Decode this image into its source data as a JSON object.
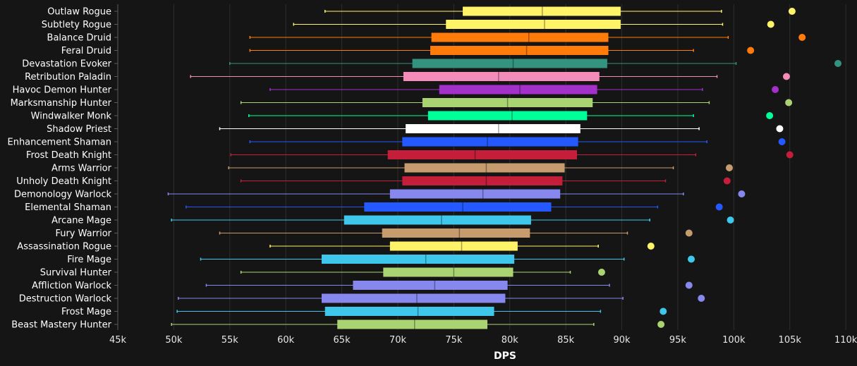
{
  "chart_data": {
    "type": "box",
    "xlabel": "DPS",
    "xlim": [
      45000,
      111000
    ],
    "x_ticks": [
      45000,
      50000,
      55000,
      60000,
      65000,
      70000,
      75000,
      80000,
      85000,
      90000,
      95000,
      100000,
      105000,
      110000
    ],
    "x_tick_labels": [
      "45k",
      "50k",
      "55k",
      "60k",
      "65k",
      "70k",
      "75k",
      "80k",
      "85k",
      "90k",
      "95k",
      "100k",
      "105k",
      "110k"
    ],
    "grid": true,
    "series": [
      {
        "name": "Outlaw Rogue",
        "color": "#FFF468",
        "min": 63500,
        "q1": 75800,
        "median": 82900,
        "q3": 89900,
        "max": 98900,
        "outlier": 105200
      },
      {
        "name": "Subtlety Rogue",
        "color": "#FFF468",
        "min": 60700,
        "q1": 74300,
        "median": 83100,
        "q3": 89900,
        "max": 99000,
        "outlier": 103300
      },
      {
        "name": "Balance Druid",
        "color": "#FF7C0A",
        "min": 56800,
        "q1": 73000,
        "median": 81700,
        "q3": 88800,
        "max": 99500,
        "outlier": 106100
      },
      {
        "name": "Feral Druid",
        "color": "#FF7C0A",
        "min": 56800,
        "q1": 72900,
        "median": 81500,
        "q3": 88800,
        "max": 96400,
        "outlier": 101500
      },
      {
        "name": "Devastation Evoker",
        "color": "#33937F",
        "min": 55000,
        "q1": 71300,
        "median": 80300,
        "q3": 88700,
        "max": 100200,
        "outlier": 109300
      },
      {
        "name": "Retribution Paladin",
        "color": "#F48CBA",
        "min": 51500,
        "q1": 70500,
        "median": 79000,
        "q3": 88000,
        "max": 98500,
        "outlier": 104700
      },
      {
        "name": "Havoc Demon Hunter",
        "color": "#A330C9",
        "min": 58600,
        "q1": 73700,
        "median": 80900,
        "q3": 87800,
        "max": 97200,
        "outlier": 103700
      },
      {
        "name": "Marksmanship Hunter",
        "color": "#AAD372",
        "min": 56000,
        "q1": 72200,
        "median": 79800,
        "q3": 87400,
        "max": 97800,
        "outlier": 104900
      },
      {
        "name": "Windwalker Monk",
        "color": "#00FF98",
        "min": 56700,
        "q1": 72700,
        "median": 80200,
        "q3": 86900,
        "max": 96400,
        "outlier": 103200
      },
      {
        "name": "Shadow Priest",
        "color": "#FFFFFF",
        "min": 54100,
        "q1": 70700,
        "median": 79000,
        "q3": 86300,
        "max": 96900,
        "outlier": 104100
      },
      {
        "name": "Enhancement Shaman",
        "color": "#2459FF",
        "min": 56800,
        "q1": 70400,
        "median": 78000,
        "q3": 86100,
        "max": 97600,
        "outlier": 104300
      },
      {
        "name": "Frost Death Knight",
        "color": "#C41E3A",
        "min": 55100,
        "q1": 69100,
        "median": 76900,
        "q3": 86000,
        "max": 96600,
        "outlier": 105000
      },
      {
        "name": "Arms Warrior",
        "color": "#C69B6D",
        "min": 54900,
        "q1": 70600,
        "median": 77900,
        "q3": 84900,
        "max": 94600,
        "outlier": 99600
      },
      {
        "name": "Unholy Death Knight",
        "color": "#C41E3A",
        "min": 56000,
        "q1": 70400,
        "median": 77900,
        "q3": 84700,
        "max": 93900,
        "outlier": 99400
      },
      {
        "name": "Demonology Warlock",
        "color": "#8788EE",
        "min": 49500,
        "q1": 69300,
        "median": 77600,
        "q3": 84500,
        "max": 95500,
        "outlier": 100700
      },
      {
        "name": "Elemental Shaman",
        "color": "#2459FF",
        "min": 51100,
        "q1": 67000,
        "median": 75800,
        "q3": 83700,
        "max": 93200,
        "outlier": 98700
      },
      {
        "name": "Arcane Mage",
        "color": "#3FC7EB",
        "min": 49800,
        "q1": 65200,
        "median": 73900,
        "q3": 81900,
        "max": 92500,
        "outlier": 99700
      },
      {
        "name": "Fury Warrior",
        "color": "#C69B6D",
        "min": 54100,
        "q1": 68600,
        "median": 75500,
        "q3": 81800,
        "max": 90500,
        "outlier": 96000
      },
      {
        "name": "Assassination Rogue",
        "color": "#FFF468",
        "min": 58600,
        "q1": 69300,
        "median": 75700,
        "q3": 80700,
        "max": 87900,
        "outlier": 92600
      },
      {
        "name": "Fire Mage",
        "color": "#3FC7EB",
        "min": 52400,
        "q1": 63200,
        "median": 72500,
        "q3": 80400,
        "max": 90200,
        "outlier": 96200
      },
      {
        "name": "Survival Hunter",
        "color": "#AAD372",
        "min": 56000,
        "q1": 68700,
        "median": 75000,
        "q3": 80300,
        "max": 85400,
        "outlier": 88200
      },
      {
        "name": "Affliction Warlock",
        "color": "#8788EE",
        "min": 52900,
        "q1": 66000,
        "median": 73300,
        "q3": 79800,
        "max": 88900,
        "outlier": 96000
      },
      {
        "name": "Destruction Warlock",
        "color": "#8788EE",
        "min": 50400,
        "q1": 63200,
        "median": 71700,
        "q3": 79600,
        "max": 90100,
        "outlier": 97100
      },
      {
        "name": "Frost Mage",
        "color": "#3FC7EB",
        "min": 50300,
        "q1": 63500,
        "median": 71800,
        "q3": 78600,
        "max": 88100,
        "outlier": 93700
      },
      {
        "name": "Beast Mastery Hunter",
        "color": "#AAD372",
        "min": 49800,
        "q1": 64600,
        "median": 71500,
        "q3": 78000,
        "max": 87500,
        "outlier": 93500
      }
    ]
  }
}
